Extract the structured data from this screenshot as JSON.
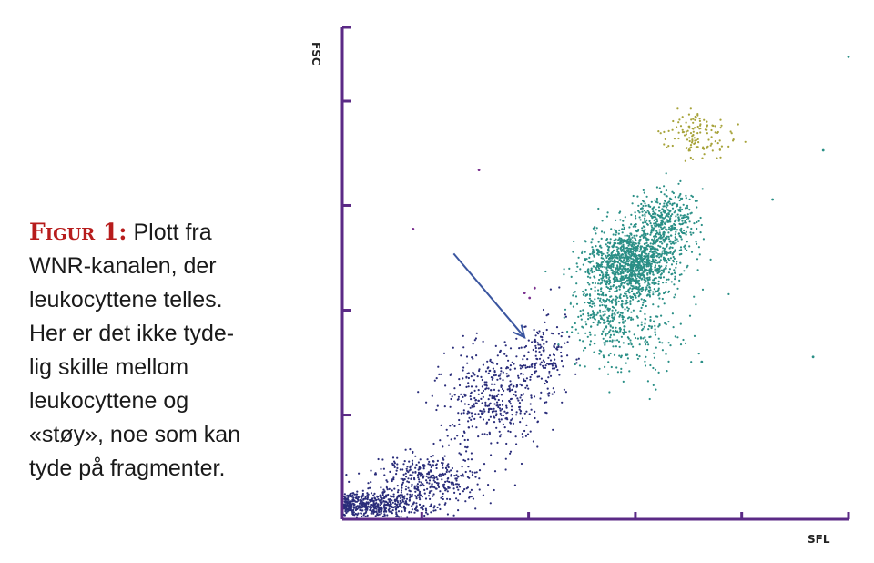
{
  "caption": {
    "label": "Figur 1:",
    "lines": [
      "Plott fra",
      "WNR-kanalen, der",
      "leukocyttene telles.",
      "Her er det ikke tyde-",
      "lig skille mellom",
      "leukocyttene og",
      "«støy», noe som kan",
      "tyde på fragmenter."
    ]
  },
  "chart_data": {
    "type": "scatter",
    "title": "",
    "xlabel": "SFL",
    "ylabel": "FSC",
    "xlim": [
      0,
      100
    ],
    "ylim": [
      0,
      100
    ],
    "grid": false,
    "colors": {
      "axis": "#5b2a86",
      "noise": "#2a2d7a",
      "leukocytes": "#2a8f86",
      "cluster_high": "#a7a33a",
      "outliers": "#7a2f8f",
      "arrow": "#3b56a0"
    },
    "series": [
      {
        "color_key": "noise",
        "clusters": [
          {
            "cx": 6,
            "cy": 3,
            "sx": 8,
            "sy": 2.2,
            "n": 520
          },
          {
            "cx": 17,
            "cy": 8,
            "sx": 9,
            "sy": 5,
            "n": 380
          },
          {
            "cx": 30,
            "cy": 25,
            "sx": 9,
            "sy": 9,
            "n": 420
          },
          {
            "cx": 40,
            "cy": 33,
            "sx": 4,
            "sy": 6,
            "n": 140
          }
        ]
      },
      {
        "color_key": "leukocytes",
        "clusters": [
          {
            "cx": 57,
            "cy": 52,
            "sx": 7,
            "sy": 6,
            "n": 1200
          },
          {
            "cx": 64,
            "cy": 60,
            "sx": 5,
            "sy": 6,
            "n": 420
          },
          {
            "cx": 52,
            "cy": 42,
            "sx": 6,
            "sy": 6,
            "n": 260
          },
          {
            "cx": 58,
            "cy": 38,
            "sx": 9,
            "sy": 9,
            "n": 180
          }
        ]
      },
      {
        "color_key": "cluster_high",
        "clusters": [
          {
            "cx": 70,
            "cy": 78,
            "sx": 5.5,
            "sy": 4,
            "n": 130
          }
        ]
      },
      {
        "color_key": "outliers",
        "points": [
          [
            27,
            71
          ],
          [
            14,
            59
          ],
          [
            36,
            46
          ],
          [
            37,
            45
          ],
          [
            38,
            47
          ]
        ]
      },
      {
        "color_key": "leukocytes",
        "points": [
          [
            100,
            94
          ],
          [
            95,
            75
          ],
          [
            85,
            65
          ],
          [
            93,
            33
          ],
          [
            71,
            32
          ]
        ]
      }
    ],
    "annotation": {
      "type": "arrow",
      "from": [
        22,
        54
      ],
      "to": [
        36,
        37
      ]
    }
  }
}
